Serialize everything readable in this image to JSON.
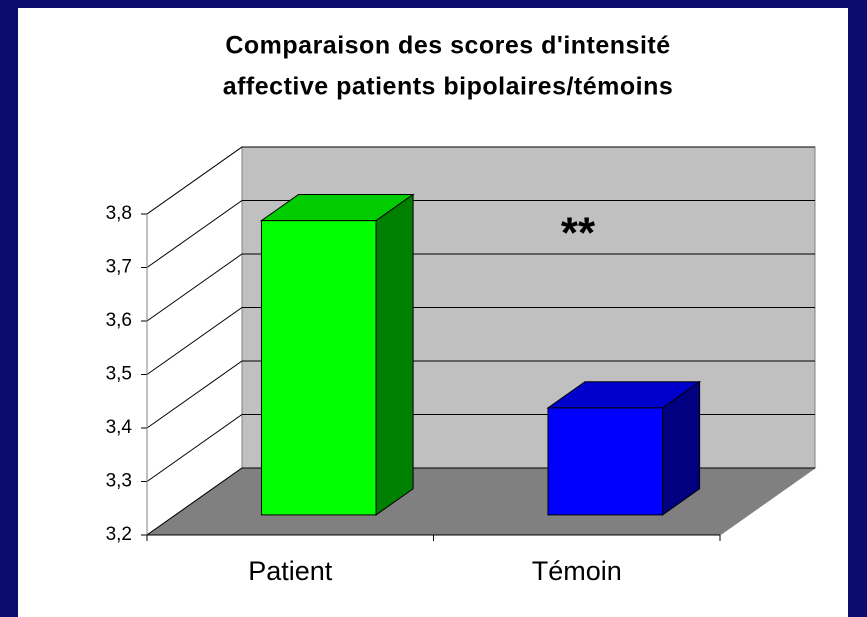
{
  "chart_data": {
    "type": "bar3d",
    "title": [
      "Comparaison des scores d'intensité",
      "affective patients bipolaires/témoins"
    ],
    "categories": [
      "Patient",
      "Témoin"
    ],
    "values": [
      3.75,
      3.4
    ],
    "colors": [
      "#00ff00",
      "#0000ff"
    ],
    "ylim": [
      3.2,
      3.8
    ],
    "yticks": [
      {
        "value": 3.2,
        "label": "3,2"
      },
      {
        "value": 3.3,
        "label": "3,3"
      },
      {
        "value": 3.4,
        "label": "3,4"
      },
      {
        "value": 3.5,
        "label": "3,5"
      },
      {
        "value": 3.6,
        "label": "3,6"
      },
      {
        "value": 3.7,
        "label": "3,7"
      },
      {
        "value": 3.8,
        "label": "3,8"
      }
    ],
    "annotation": "**",
    "grid": true
  }
}
